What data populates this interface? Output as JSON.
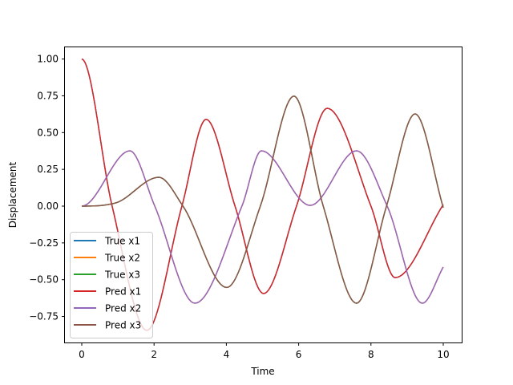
{
  "chart_data": {
    "type": "line",
    "title": "",
    "xlabel": "Time",
    "ylabel": "Displacement",
    "xlim": [
      -0.5,
      10.5
    ],
    "ylim": [
      -0.92,
      1.09
    ],
    "xticks": [
      0,
      2,
      4,
      6,
      8,
      10
    ],
    "xtick_labels": [
      "0",
      "2",
      "4",
      "6",
      "8",
      "10"
    ],
    "yticks": [
      -0.75,
      -0.5,
      -0.25,
      0,
      0.25,
      0.5,
      0.75,
      1.0
    ],
    "ytick_labels": [
      "−0.75",
      "−0.50",
      "−0.25",
      "0.00",
      "0.25",
      "0.50",
      "0.75",
      "1.00"
    ],
    "grid": false,
    "legend_position": "lower-left",
    "series": [
      {
        "name": "True x1",
        "color": "#1f77b4",
        "ref": "x1"
      },
      {
        "name": "True x2",
        "color": "#ff7f0e",
        "ref": "x2"
      },
      {
        "name": "True x3",
        "color": "#2ca02c",
        "ref": "x3"
      },
      {
        "name": "Pred x1",
        "color": "#d62728",
        "ref": "x1"
      },
      {
        "name": "Pred x2",
        "color": "#9467bd",
        "ref": "x2"
      },
      {
        "name": "Pred x3",
        "color": "#8c564b",
        "ref": "x3"
      }
    ],
    "curves": {
      "x1": {
        "x": [
          0,
          0.84,
          1.8,
          2.77,
          3.44,
          4.24,
          5.03,
          5.94,
          6.79,
          8.0,
          8.67,
          10
        ],
        "y": [
          1.0,
          0.0,
          -0.845,
          0.0,
          0.59,
          0.0,
          -0.594,
          0.0,
          0.665,
          0.0,
          -0.486,
          0.01
        ]
      },
      "x2": {
        "x": [
          0,
          1.33,
          2.02,
          3.13,
          4.43,
          4.97,
          6.32,
          7.6,
          8.45,
          9.42,
          10
        ],
        "y": [
          0.0,
          0.376,
          0.0,
          -0.66,
          0.0,
          0.376,
          0.005,
          0.376,
          0.0,
          -0.66,
          -0.414
        ]
      },
      "x3": {
        "x": [
          0,
          0.4,
          0.91,
          2.13,
          2.8,
          4.01,
          4.94,
          5.87,
          6.68,
          7.6,
          8.43,
          9.22,
          10
        ],
        "y": [
          0.0,
          0.002,
          0.02,
          0.196,
          0.0,
          -0.553,
          0.0,
          0.748,
          0.0,
          -0.66,
          0.0,
          0.627,
          -0.01
        ]
      }
    }
  }
}
